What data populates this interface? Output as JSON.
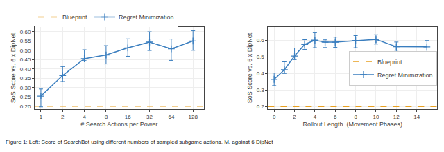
{
  "chart_data": [
    {
      "type": "line",
      "xlabel": "# Search Actions per Power",
      "ylabel": "SoS Score vs. 6 x DipNet",
      "log": "x",
      "x": [
        1,
        2,
        4,
        8,
        16,
        32,
        64,
        128
      ],
      "xlim": [
        0.82,
        180
      ],
      "xticks": [
        1,
        2,
        4,
        8,
        16,
        32,
        64,
        128
      ],
      "ylim": [
        0.185,
        0.625
      ],
      "yticks": [
        {
          "value": 0.2,
          "label": "0.20"
        },
        0.25,
        {
          "value": 0.3,
          "label": "0.30"
        },
        0.35,
        {
          "value": 0.4,
          "label": "0.40"
        },
        0.45,
        {
          "value": 0.5,
          "label": "0.50"
        },
        0.55,
        {
          "value": 0.6,
          "label": "0.60"
        }
      ],
      "grid": true,
      "legend": "upper left",
      "series": [
        {
          "name": "Blueprint",
          "type": "hline",
          "color": "#e8a020",
          "line_style": "dashed",
          "y": 0.201
        },
        {
          "name": "Regret Minimization",
          "type": "line",
          "color": "#3a7ebf",
          "marker": "plus",
          "values": [
            0.255,
            0.365,
            0.455,
            0.475,
            0.513,
            0.544,
            0.508,
            0.55
          ],
          "error_lo": [
            0.058,
            0.032,
            0.01,
            0.048,
            0.045,
            0.045,
            0.062,
            0.05
          ],
          "error_hi": [
            0.038,
            0.048,
            0.048,
            0.05,
            0.048,
            0.055,
            0.052,
            0.055
          ]
        }
      ],
      "annotations": [
        "Figure 1: Left: Score of SearchBot using different numbers of sampled subgame actions, M, against 6 DipNet"
      ]
    },
    {
      "type": "line",
      "xlabel": "Rollout Length  (Movement Phases)",
      "ylabel": "SoS Score vs. 6 x DipNet",
      "x": [
        0,
        1,
        2,
        3,
        4,
        5,
        6,
        8,
        10,
        12,
        15
      ],
      "xlim": [
        -0.6,
        16.0
      ],
      "xticks": [
        0,
        2,
        4,
        6,
        8,
        10,
        12,
        14
      ],
      "ylim": [
        0.185,
        0.68
      ],
      "yticks": [
        0.2,
        0.3,
        0.4,
        0.5,
        0.6
      ],
      "grid": true,
      "legend": "center right",
      "series": [
        {
          "name": "Blueprint",
          "type": "hline",
          "color": "#e8a020",
          "line_style": "dashed",
          "y": 0.201
        },
        {
          "name": "Regret Minimization",
          "type": "line",
          "color": "#3a7ebf",
          "marker": "plus",
          "values": [
            0.365,
            0.422,
            0.505,
            0.575,
            0.6,
            0.588,
            0.588,
            0.598,
            0.605,
            0.561,
            0.56
          ],
          "error_lo": [
            0.038,
            0.022,
            0.022,
            0.03,
            0.045,
            0.032,
            0.031,
            0.043,
            0.028,
            0.028,
            0.038
          ],
          "error_hi": [
            0.038,
            0.048,
            0.048,
            0.028,
            0.045,
            0.014,
            0.031,
            0.03,
            0.028,
            0.028,
            0.038
          ]
        }
      ]
    }
  ]
}
